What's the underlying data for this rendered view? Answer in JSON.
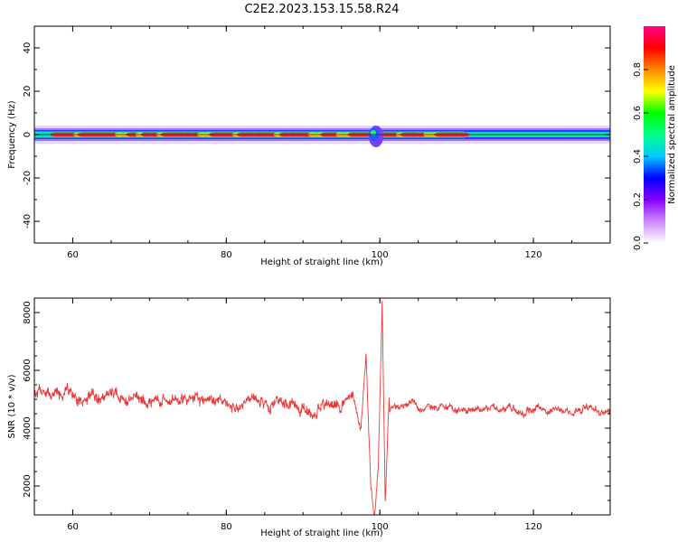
{
  "figure": {
    "title": "C2E2.2023.153.15.58.R24"
  },
  "chart_data": [
    {
      "type": "heatmap",
      "title": "C2E2.2023.153.15.58.R24",
      "xlabel": "Height of straight line (km)",
      "ylabel": "Frequency (Hz)",
      "xlim": [
        55,
        130
      ],
      "ylim": [
        -50,
        50
      ],
      "xticks": [
        "60",
        "80",
        "100",
        "120"
      ],
      "yticks": [
        "-40",
        "-20",
        "0",
        "20",
        "40"
      ],
      "grid": false,
      "colorbar": {
        "label": "Normalized spectral amplitude",
        "range": [
          0,
          1
        ],
        "ticks": [
          "0.0",
          "0.2",
          "0.4",
          "0.6",
          "0.8"
        ],
        "colormap": [
          "#ffffff",
          "#cc88ff",
          "#8800ff",
          "#0000ff",
          "#00ccff",
          "#00ff88",
          "#00ff00",
          "#ffff00",
          "#ff8800",
          "#ff0000",
          "#ff0088"
        ]
      },
      "band": {
        "center_frequency_hz": 0,
        "half_width_hz": 3,
        "peak_segment_km": [
          58,
          99
        ],
        "peak_segment_2_km": [
          100,
          111
        ],
        "disturbance_km": 99.5,
        "weak_region_km": [
          111,
          130
        ]
      }
    },
    {
      "type": "line",
      "xlabel": "Height of straight line (km)",
      "ylabel": "SNR (10 * v/v)",
      "xlim": [
        55,
        130
      ],
      "ylim": [
        1000,
        8500
      ],
      "xticks": [
        "60",
        "80",
        "100",
        "120"
      ],
      "yticks": [
        "2000",
        "4000",
        "6000",
        "8000"
      ],
      "grid": false,
      "series": [
        {
          "color": "#e83a3a",
          "baseline": [
            [
              55,
              5200
            ],
            [
              65,
              5050
            ],
            [
              75,
              4900
            ],
            [
              85,
              4800
            ],
            [
              90,
              4750
            ],
            [
              100,
              4750
            ],
            [
              110,
              4750
            ],
            [
              120,
              4600
            ],
            [
              130,
              4550
            ]
          ],
          "burst": [
            [
              95,
              4800
            ],
            [
              96.5,
              5200
            ],
            [
              97.5,
              3900
            ],
            [
              98.2,
              6500
            ],
            [
              98.8,
              2100
            ],
            [
              99.3,
              900
            ],
            [
              99.8,
              2700
            ],
            [
              100.3,
              8300
            ],
            [
              100.7,
              1500
            ],
            [
              101.2,
              5000
            ]
          ]
        }
      ]
    }
  ]
}
